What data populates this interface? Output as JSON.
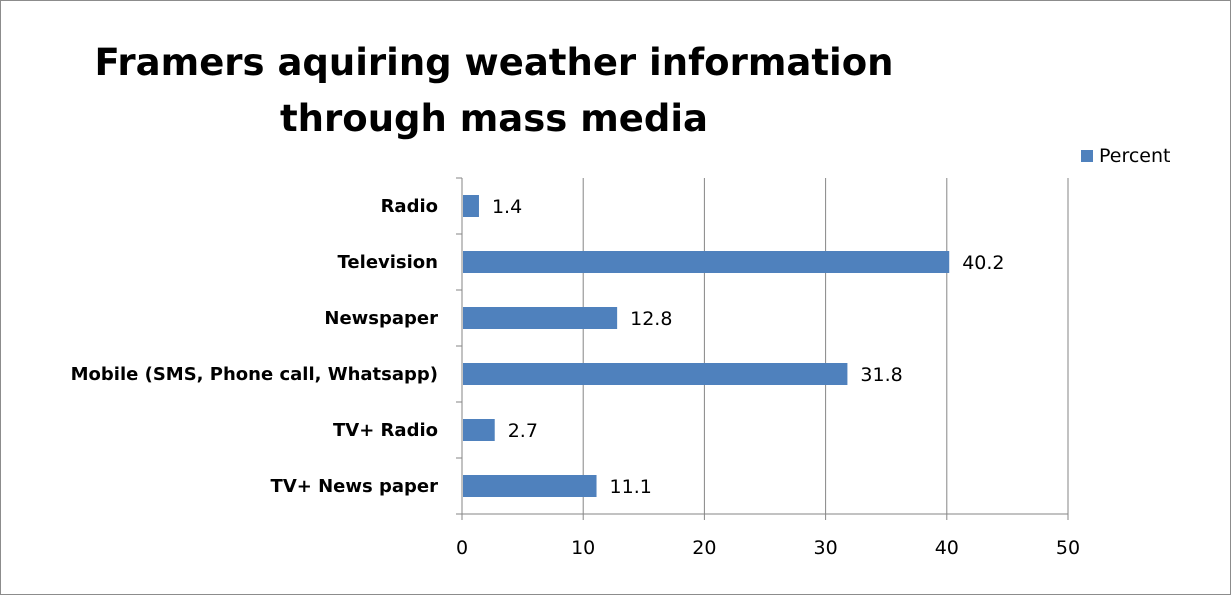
{
  "chart_data": {
    "type": "bar",
    "orientation": "horizontal",
    "title": "Framers aquiring weather information through mass media",
    "categories": [
      "Radio",
      "Television",
      "Newspaper",
      "Mobile (SMS, Phone call, Whatsapp)",
      "TV+ Radio",
      "TV+ News paper"
    ],
    "series": [
      {
        "name": "Percent",
        "values": [
          1.4,
          40.2,
          12.8,
          31.8,
          2.7,
          11.1
        ],
        "color": "#4f81bd"
      }
    ],
    "xlim": [
      0,
      50
    ],
    "xticks": [
      "0",
      "10",
      "20",
      "30",
      "40",
      "50"
    ],
    "grid": true,
    "legend_position": "top-right"
  }
}
